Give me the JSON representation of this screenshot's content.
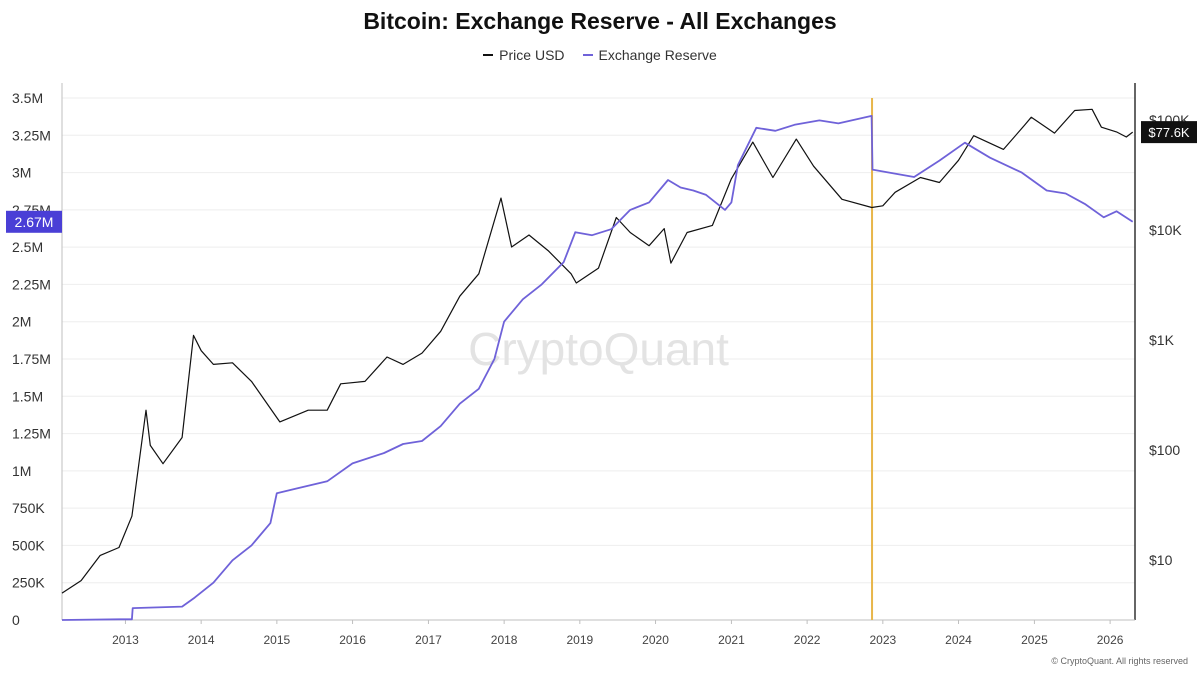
{
  "chart_data": {
    "type": "line",
    "title": "Bitcoin: Exchange Reserve - All Exchanges",
    "watermark": "CryptoQuant",
    "copyright": "© CryptoQuant. All rights reserved",
    "x_ticks": [
      "2013",
      "2014",
      "2015",
      "2016",
      "2017",
      "2018",
      "2019",
      "2020",
      "2021",
      "2022",
      "2023",
      "2024",
      "2025",
      "2026"
    ],
    "xlim": [
      "2012-03-01",
      "2026-05-01"
    ],
    "y_left": {
      "ticks": [
        "0",
        "250K",
        "500K",
        "750K",
        "1M",
        "1.25M",
        "1.5M",
        "1.75M",
        "2M",
        "2.25M",
        "2.5M",
        "2.75M",
        "3M",
        "3.25M",
        "3.5M"
      ],
      "lim": [
        0,
        3500000
      ],
      "current_value_label": "2.67M",
      "label_color": "#4a3fd6"
    },
    "y_right": {
      "scale": "log",
      "ticks": [
        "$10",
        "$100",
        "$1K",
        "$10K",
        "$100K"
      ],
      "current_value_label": "$77.6K"
    },
    "marker": {
      "date": "2022-11-10",
      "color": "#e8b64a"
    },
    "grid": true,
    "legend_position": "top-center",
    "series": [
      {
        "name": "Price USD",
        "axis": "right",
        "color": "#111111",
        "points": [
          [
            "2012-03-01",
            5
          ],
          [
            "2012-06-01",
            6.5
          ],
          [
            "2012-09-01",
            11
          ],
          [
            "2012-12-01",
            13
          ],
          [
            "2013-02-01",
            25
          ],
          [
            "2013-04-10",
            230
          ],
          [
            "2013-05-01",
            110
          ],
          [
            "2013-07-01",
            75
          ],
          [
            "2013-10-01",
            130
          ],
          [
            "2013-11-25",
            1100
          ],
          [
            "2014-01-01",
            800
          ],
          [
            "2014-03-01",
            600
          ],
          [
            "2014-06-01",
            620
          ],
          [
            "2014-09-01",
            420
          ],
          [
            "2015-01-15",
            180
          ],
          [
            "2015-06-01",
            230
          ],
          [
            "2015-09-01",
            230
          ],
          [
            "2015-11-05",
            400
          ],
          [
            "2016-03-01",
            420
          ],
          [
            "2016-06-15",
            700
          ],
          [
            "2016-09-01",
            600
          ],
          [
            "2016-12-01",
            760
          ],
          [
            "2017-03-01",
            1200
          ],
          [
            "2017-06-01",
            2500
          ],
          [
            "2017-09-01",
            4000
          ],
          [
            "2017-12-17",
            19500
          ],
          [
            "2018-02-06",
            7000
          ],
          [
            "2018-05-01",
            9000
          ],
          [
            "2018-08-01",
            6500
          ],
          [
            "2018-11-20",
            4000
          ],
          [
            "2018-12-15",
            3300
          ],
          [
            "2019-04-01",
            4500
          ],
          [
            "2019-06-26",
            13000
          ],
          [
            "2019-09-01",
            9500
          ],
          [
            "2019-12-01",
            7200
          ],
          [
            "2020-02-12",
            10300
          ],
          [
            "2020-03-15",
            5000
          ],
          [
            "2020-06-01",
            9500
          ],
          [
            "2020-10-01",
            11000
          ],
          [
            "2020-12-31",
            29000
          ],
          [
            "2021-04-14",
            63000
          ],
          [
            "2021-07-20",
            30000
          ],
          [
            "2021-11-10",
            67000
          ],
          [
            "2022-02-01",
            38000
          ],
          [
            "2022-06-18",
            19000
          ],
          [
            "2022-11-09",
            16000
          ],
          [
            "2023-01-01",
            16600
          ],
          [
            "2023-03-01",
            22000
          ],
          [
            "2023-07-01",
            30000
          ],
          [
            "2023-10-01",
            27000
          ],
          [
            "2024-01-01",
            43000
          ],
          [
            "2024-03-14",
            72000
          ],
          [
            "2024-08-05",
            54000
          ],
          [
            "2024-11-15",
            90000
          ],
          [
            "2024-12-17",
            106000
          ],
          [
            "2025-04-08",
            76000
          ],
          [
            "2025-07-14",
            122000
          ],
          [
            "2025-10-06",
            125000
          ],
          [
            "2025-11-20",
            86000
          ],
          [
            "2026-02-01",
            78000
          ],
          [
            "2026-03-20",
            70000
          ],
          [
            "2026-04-20",
            77600
          ]
        ]
      },
      {
        "name": "Exchange Reserve",
        "axis": "left",
        "color": "#6f62d9",
        "points": [
          [
            "2012-03-01",
            0
          ],
          [
            "2012-12-01",
            5000
          ],
          [
            "2013-02-01",
            5000
          ],
          [
            "2013-02-05",
            80000
          ],
          [
            "2013-10-01",
            90000
          ],
          [
            "2013-12-01",
            150000
          ],
          [
            "2014-03-01",
            250000
          ],
          [
            "2014-06-01",
            400000
          ],
          [
            "2014-09-01",
            500000
          ],
          [
            "2014-12-01",
            650000
          ],
          [
            "2015-01-01",
            850000
          ],
          [
            "2015-04-01",
            880000
          ],
          [
            "2015-09-01",
            930000
          ],
          [
            "2016-01-01",
            1050000
          ],
          [
            "2016-06-01",
            1120000
          ],
          [
            "2016-09-01",
            1180000
          ],
          [
            "2016-12-01",
            1200000
          ],
          [
            "2017-03-01",
            1300000
          ],
          [
            "2017-06-01",
            1450000
          ],
          [
            "2017-09-01",
            1550000
          ],
          [
            "2017-11-15",
            1750000
          ],
          [
            "2018-01-01",
            2000000
          ],
          [
            "2018-04-01",
            2150000
          ],
          [
            "2018-07-01",
            2250000
          ],
          [
            "2018-10-15",
            2400000
          ],
          [
            "2018-12-10",
            2600000
          ],
          [
            "2019-03-01",
            2580000
          ],
          [
            "2019-06-01",
            2620000
          ],
          [
            "2019-09-01",
            2750000
          ],
          [
            "2019-12-01",
            2800000
          ],
          [
            "2020-03-01",
            2950000
          ],
          [
            "2020-05-01",
            2900000
          ],
          [
            "2020-07-01",
            2880000
          ],
          [
            "2020-09-01",
            2850000
          ],
          [
            "2020-12-01",
            2750000
          ],
          [
            "2021-01-01",
            2800000
          ],
          [
            "2021-02-01",
            3050000
          ],
          [
            "2021-05-01",
            3300000
          ],
          [
            "2021-08-01",
            3280000
          ],
          [
            "2021-11-01",
            3320000
          ],
          [
            "2022-03-01",
            3350000
          ],
          [
            "2022-06-01",
            3330000
          ],
          [
            "2022-11-08",
            3380000
          ],
          [
            "2022-11-12",
            3020000
          ],
          [
            "2023-02-01",
            3000000
          ],
          [
            "2023-06-01",
            2970000
          ],
          [
            "2023-10-01",
            3080000
          ],
          [
            "2024-02-01",
            3200000
          ],
          [
            "2024-06-01",
            3100000
          ],
          [
            "2024-11-01",
            3000000
          ],
          [
            "2025-03-01",
            2880000
          ],
          [
            "2025-06-01",
            2860000
          ],
          [
            "2025-09-01",
            2790000
          ],
          [
            "2025-12-01",
            2700000
          ],
          [
            "2026-02-01",
            2740000
          ],
          [
            "2026-04-20",
            2670000
          ]
        ]
      }
    ]
  }
}
